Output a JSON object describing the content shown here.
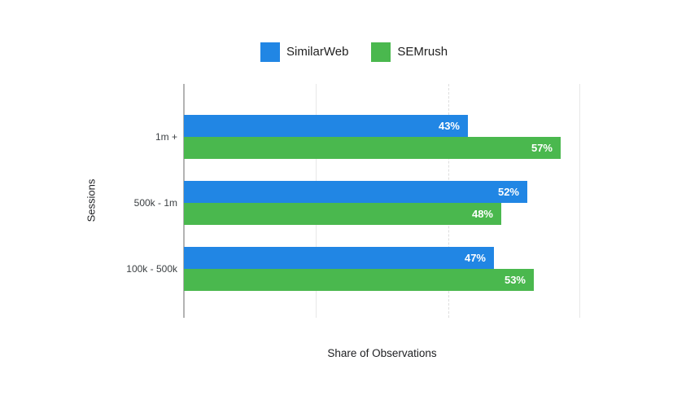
{
  "legend": {
    "items": [
      {
        "label": "SimilarWeb",
        "color": "#2186E4"
      },
      {
        "label": "SEMrush",
        "color": "#4AB84E"
      }
    ]
  },
  "axes": {
    "x_title": "Share of Observations",
    "y_title": "Sessions"
  },
  "chart_data": {
    "type": "bar",
    "orientation": "horizontal",
    "title": "",
    "categories": [
      "1m +",
      "500k - 1m",
      "100k - 500k"
    ],
    "series": [
      {
        "name": "SimilarWeb",
        "color": "#2186E4",
        "values": [
          43,
          52,
          47
        ]
      },
      {
        "name": "SEMrush",
        "color": "#4AB84E",
        "values": [
          57,
          48,
          53
        ]
      }
    ],
    "value_suffix": "%",
    "xlabel": "Share of Observations",
    "ylabel": "Sessions",
    "xlim": [
      0,
      60
    ],
    "gridlines_pct": [
      0,
      20,
      40,
      60
    ],
    "grid": "vertical-lines-only",
    "legend_position": "top-center",
    "value_labels": "inside-end-white-bold"
  }
}
